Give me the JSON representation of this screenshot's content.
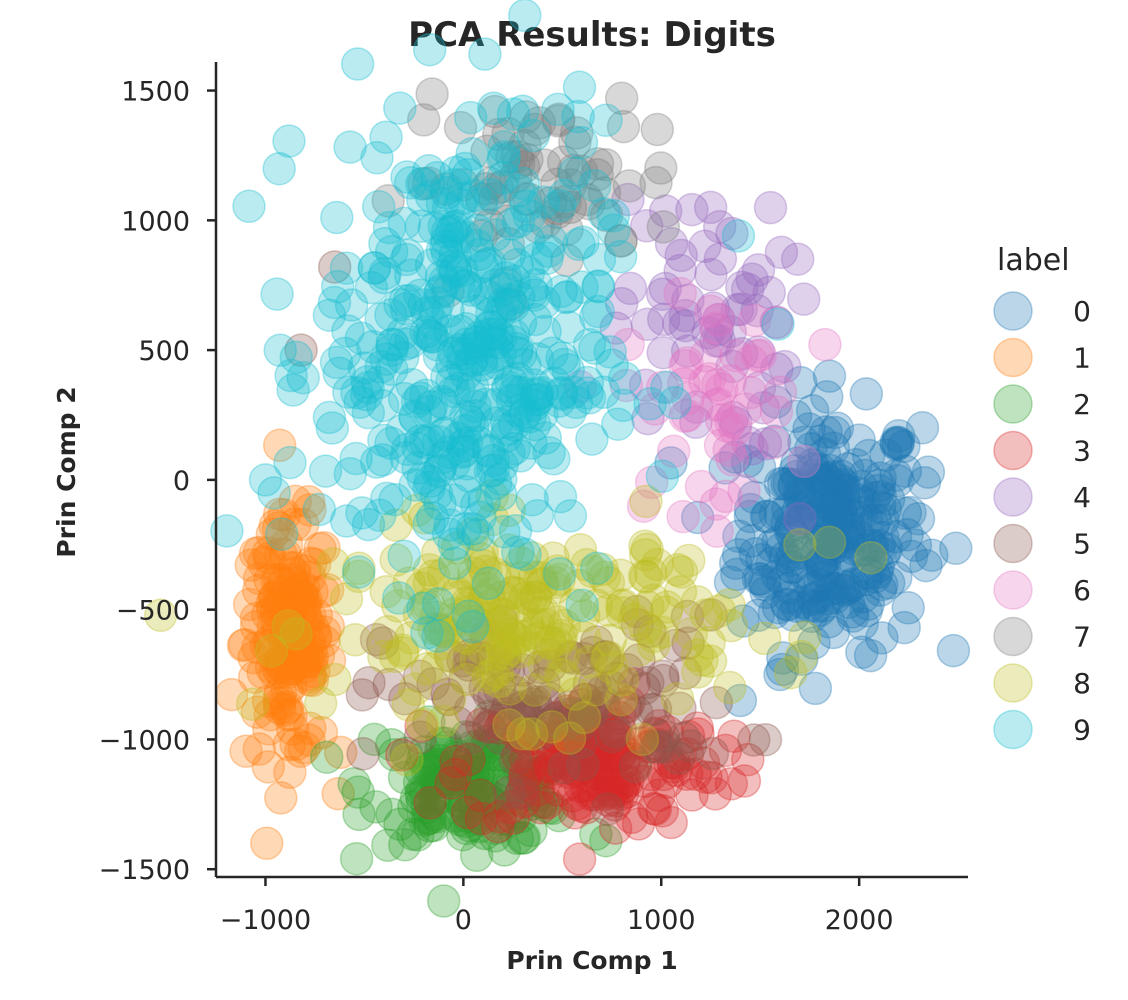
{
  "chart_data": {
    "type": "scatter",
    "title": "PCA Results: Digits",
    "xlabel": "Prin Comp 1",
    "ylabel": "Prin Comp 2",
    "xlim": [
      -1250,
      2550
    ],
    "ylim": [
      -1530,
      1610
    ],
    "xticks": [
      -1000,
      0,
      1000,
      2000
    ],
    "yticks": [
      -1500,
      -1000,
      -500,
      0,
      500,
      1000,
      1500
    ],
    "xtick_labels": [
      "−1000",
      "0",
      "1000",
      "2000"
    ],
    "ytick_labels": [
      "−1500",
      "−1000",
      "−500",
      "0",
      "500",
      "1000",
      "1500"
    ],
    "grid": false,
    "legend": {
      "title": "label",
      "position": "right"
    },
    "marker_alpha": 0.3,
    "series": [
      {
        "name": "0",
        "color": "#1f77b4",
        "cx": 1850,
        "cy": -200,
        "sx": 230,
        "sy": 230,
        "points": 260,
        "extremes": [
          [
            2350,
            30
          ],
          [
            2300,
            -150
          ],
          [
            2200,
            170
          ],
          [
            1850,
            400
          ],
          [
            1400,
            -850
          ],
          [
            1600,
            -750
          ]
        ]
      },
      {
        "name": "1",
        "color": "#ff7f0e",
        "cx": -880,
        "cy": -620,
        "sx": 110,
        "sy": 230,
        "points": 160,
        "extremes": [
          [
            -1080,
            -480
          ],
          [
            -880,
            -1020
          ],
          [
            -620,
            -1050
          ],
          [
            -1030,
            -380
          ]
        ]
      },
      {
        "name": "2",
        "color": "#2ca02c",
        "cx": 50,
        "cy": -1180,
        "sx": 260,
        "sy": 110,
        "points": 160,
        "extremes": [
          [
            -250,
            -1260
          ],
          [
            720,
            -1390
          ],
          [
            300,
            -1380
          ],
          [
            -450,
            -1000
          ]
        ]
      },
      {
        "name": "3",
        "color": "#d62728",
        "cx": 650,
        "cy": -1090,
        "sx": 330,
        "sy": 130,
        "points": 180,
        "extremes": [
          [
            1420,
            -1160
          ],
          [
            1050,
            -1320
          ],
          [
            850,
            -1300
          ]
        ]
      },
      {
        "name": "4",
        "color": "#9467bd",
        "cx": 1200,
        "cy": 600,
        "sx": 220,
        "sy": 250,
        "points": 60,
        "extremes": [
          [
            1250,
            1050
          ],
          [
            1220,
            900
          ],
          [
            1700,
            -150
          ]
        ]
      },
      {
        "name": "5",
        "color": "#8c564b",
        "cx": 500,
        "cy": -850,
        "sx": 450,
        "sy": 160,
        "points": 120,
        "extremes": [
          [
            -650,
            820
          ],
          [
            -820,
            500
          ]
        ]
      },
      {
        "name": "6",
        "color": "#e377c2",
        "cx": 1250,
        "cy": 280,
        "sx": 220,
        "sy": 200,
        "points": 50,
        "extremes": [
          [
            1500,
            480
          ],
          [
            1250,
            650
          ]
        ]
      },
      {
        "name": "7",
        "color": "#7f7f7f",
        "cx": 400,
        "cy": 1150,
        "sx": 350,
        "sy": 150,
        "points": 70,
        "extremes": [
          [
            800,
            1470
          ],
          [
            980,
            1350
          ]
        ]
      },
      {
        "name": "8",
        "color": "#bcbd22",
        "cx": 350,
        "cy": -550,
        "sx": 500,
        "sy": 180,
        "points": 220,
        "extremes": [
          [
            2060,
            -300
          ],
          [
            1700,
            -250
          ],
          [
            1850,
            -240
          ]
        ]
      },
      {
        "name": "9",
        "color": "#17becf",
        "cx": 0,
        "cy": 480,
        "sx": 360,
        "sy": 450,
        "points": 420,
        "extremes": [
          [
            1390,
            940
          ],
          [
            1590,
            600
          ],
          [
            300,
            1420
          ],
          [
            -1000,
            0
          ],
          [
            580,
            1400
          ]
        ]
      }
    ]
  }
}
